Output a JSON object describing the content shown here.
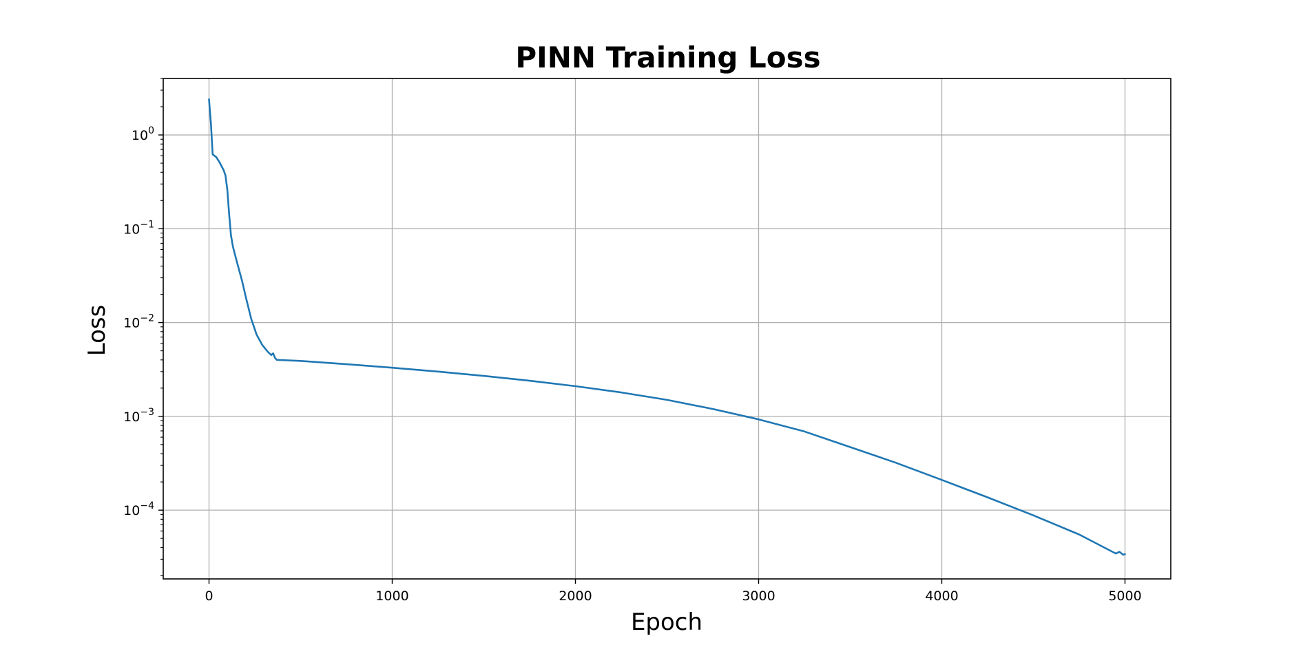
{
  "chart_data": {
    "type": "line",
    "title": "PINN Training Loss",
    "xlabel": "Epoch",
    "ylabel": "Loss",
    "y_scale": "log",
    "xlim": [
      -250,
      5250
    ],
    "ylim": [
      1.85e-05,
      4.0
    ],
    "grid": true,
    "x_ticks": [
      {
        "value": 0,
        "label": "0"
      },
      {
        "value": 1000,
        "label": "1000"
      },
      {
        "value": 2000,
        "label": "2000"
      },
      {
        "value": 3000,
        "label": "3000"
      },
      {
        "value": 4000,
        "label": "4000"
      },
      {
        "value": 5000,
        "label": "5000"
      }
    ],
    "y_ticks": [
      {
        "value": 1,
        "base": "10",
        "exp": "0"
      },
      {
        "value": 0.1,
        "base": "10",
        "exp": "−1"
      },
      {
        "value": 0.01,
        "base": "10",
        "exp": "−2"
      },
      {
        "value": 0.001,
        "base": "10",
        "exp": "−3"
      },
      {
        "value": 0.0001,
        "base": "10",
        "exp": "−4"
      }
    ],
    "series": [
      {
        "color": "#1f77b4",
        "x": [
          0,
          5,
          10,
          20,
          40,
          60,
          80,
          90,
          100,
          110,
          120,
          130,
          150,
          180,
          200,
          230,
          260,
          290,
          320,
          340,
          350,
          360,
          365,
          370,
          500,
          750,
          1000,
          1250,
          1500,
          1750,
          2000,
          2250,
          2500,
          2750,
          3000,
          3250,
          3500,
          3750,
          4000,
          4250,
          4500,
          4750,
          4950,
          4970,
          4990,
          5000
        ],
        "y": [
          2.4,
          1.8,
          1.35,
          0.62,
          0.58,
          0.5,
          0.42,
          0.37,
          0.26,
          0.14,
          0.085,
          0.065,
          0.046,
          0.028,
          0.019,
          0.011,
          0.0074,
          0.0058,
          0.0049,
          0.0045,
          0.0047,
          0.0042,
          0.0041,
          0.004,
          0.0039,
          0.0036,
          0.0033,
          0.003,
          0.0027,
          0.0024,
          0.0021,
          0.0018,
          0.0015,
          0.0012,
          0.00093,
          0.00069,
          0.00047,
          0.00032,
          0.00021,
          0.000137,
          8.8e-05,
          5.5e-05,
          3.45e-05,
          3.6e-05,
          3.35e-05,
          3.4e-05
        ]
      }
    ]
  }
}
